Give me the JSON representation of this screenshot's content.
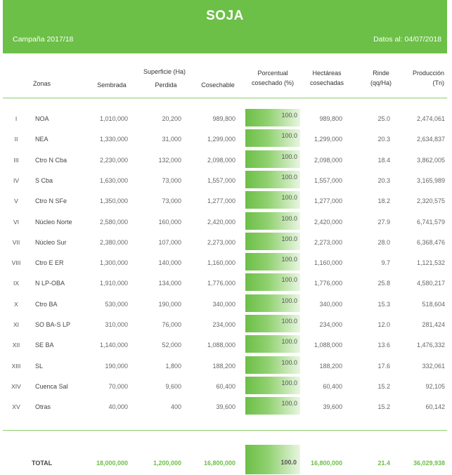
{
  "header": {
    "title": "SOJA",
    "campaign": "Campaña 2017/18",
    "date": "Datos al: 04/07/2018"
  },
  "columns": {
    "zonas": "Zonas",
    "superficie": "Superficie (Ha)",
    "sembrada": "Sembrada",
    "perdida": "Perdida",
    "cosechable": "Cosechable",
    "porcentual_1": "Porcentual",
    "porcentual_2": "cosechado (%)",
    "hectareas_1": "Hectáreas",
    "hectareas_2": "cosechadas",
    "rinde_1": "Rinde",
    "rinde_2": "(qq/Ha)",
    "produccion_1": "Producción",
    "produccion_2": "(Tn)"
  },
  "accent_color": "#6cbf47",
  "rows": [
    {
      "num": "I",
      "zona": "NOA",
      "sembrada": "1,010,000",
      "perdida": "20,200",
      "cosechable": "989,800",
      "porcentaje": "100.0",
      "hectareas": "989,800",
      "rinde": "25.0",
      "produccion": "2,474,061"
    },
    {
      "num": "II",
      "zona": "NEA",
      "sembrada": "1,330,000",
      "perdida": "31,000",
      "cosechable": "1,299,000",
      "porcentaje": "100.0",
      "hectareas": "1,299,000",
      "rinde": "20.3",
      "produccion": "2,634,837"
    },
    {
      "num": "III",
      "zona": "Ctro N Cba",
      "sembrada": "2,230,000",
      "perdida": "132,000",
      "cosechable": "2,098,000",
      "porcentaje": "100.0",
      "hectareas": "2,098,000",
      "rinde": "18.4",
      "produccion": "3,862,005"
    },
    {
      "num": "IV",
      "zona": "S Cba",
      "sembrada": "1,630,000",
      "perdida": "73,000",
      "cosechable": "1,557,000",
      "porcentaje": "100.0",
      "hectareas": "1,557,000",
      "rinde": "20.3",
      "produccion": "3,165,989"
    },
    {
      "num": "V",
      "zona": "Ctro N SFe",
      "sembrada": "1,350,000",
      "perdida": "73,000",
      "cosechable": "1,277,000",
      "porcentaje": "100.0",
      "hectareas": "1,277,000",
      "rinde": "18.2",
      "produccion": "2,320,575"
    },
    {
      "num": "VI",
      "zona": "Núcleo Norte",
      "sembrada": "2,580,000",
      "perdida": "160,000",
      "cosechable": "2,420,000",
      "porcentaje": "100.0",
      "hectareas": "2,420,000",
      "rinde": "27.9",
      "produccion": "6,741,579"
    },
    {
      "num": "VII",
      "zona": "Núcleo Sur",
      "sembrada": "2,380,000",
      "perdida": "107,000",
      "cosechable": "2,273,000",
      "porcentaje": "100.0",
      "hectareas": "2,273,000",
      "rinde": "28.0",
      "produccion": "6,368,476"
    },
    {
      "num": "VIII",
      "zona": "Ctro E ER",
      "sembrada": "1,300,000",
      "perdida": "140,000",
      "cosechable": "1,160,000",
      "porcentaje": "100.0",
      "hectareas": "1,160,000",
      "rinde": "9.7",
      "produccion": "1,121,532"
    },
    {
      "num": "IX",
      "zona": "N LP-OBA",
      "sembrada": "1,910,000",
      "perdida": "134,000",
      "cosechable": "1,776,000",
      "porcentaje": "100.0",
      "hectareas": "1,776,000",
      "rinde": "25.8",
      "produccion": "4,580,217"
    },
    {
      "num": "X",
      "zona": "Ctro BA",
      "sembrada": "530,000",
      "perdida": "190,000",
      "cosechable": "340,000",
      "porcentaje": "100.0",
      "hectareas": "340,000",
      "rinde": "15.3",
      "produccion": "518,604"
    },
    {
      "num": "XI",
      "zona": "SO BA-S LP",
      "sembrada": "310,000",
      "perdida": "76,000",
      "cosechable": "234,000",
      "porcentaje": "100.0",
      "hectareas": "234,000",
      "rinde": "12.0",
      "produccion": "281,424"
    },
    {
      "num": "XII",
      "zona": "SE BA",
      "sembrada": "1,140,000",
      "perdida": "52,000",
      "cosechable": "1,088,000",
      "porcentaje": "100.0",
      "hectareas": "1,088,000",
      "rinde": "13.6",
      "produccion": "1,476,332"
    },
    {
      "num": "XIII",
      "zona": "SL",
      "sembrada": "190,000",
      "perdida": "1,800",
      "cosechable": "188,200",
      "porcentaje": "100.0",
      "hectareas": "188,200",
      "rinde": "17.6",
      "produccion": "332,061"
    },
    {
      "num": "XIV",
      "zona": "Cuenca Sal",
      "sembrada": "70,000",
      "perdida": "9,600",
      "cosechable": "60,400",
      "porcentaje": "100.0",
      "hectareas": "60,400",
      "rinde": "15.2",
      "produccion": "92,105"
    },
    {
      "num": "XV",
      "zona": "Otras",
      "sembrada": "40,000",
      "perdida": "400",
      "cosechable": "39,600",
      "porcentaje": "100.0",
      "hectareas": "39,600",
      "rinde": "15.2",
      "produccion": "60,142"
    }
  ],
  "total": {
    "label": "TOTAL",
    "sembrada": "18,000,000",
    "perdida": "1,200,000",
    "cosechable": "16,800,000",
    "porcentaje": "100.0",
    "hectareas": "16,800,000",
    "rinde": "21.4",
    "produccion": "36,029,938"
  }
}
